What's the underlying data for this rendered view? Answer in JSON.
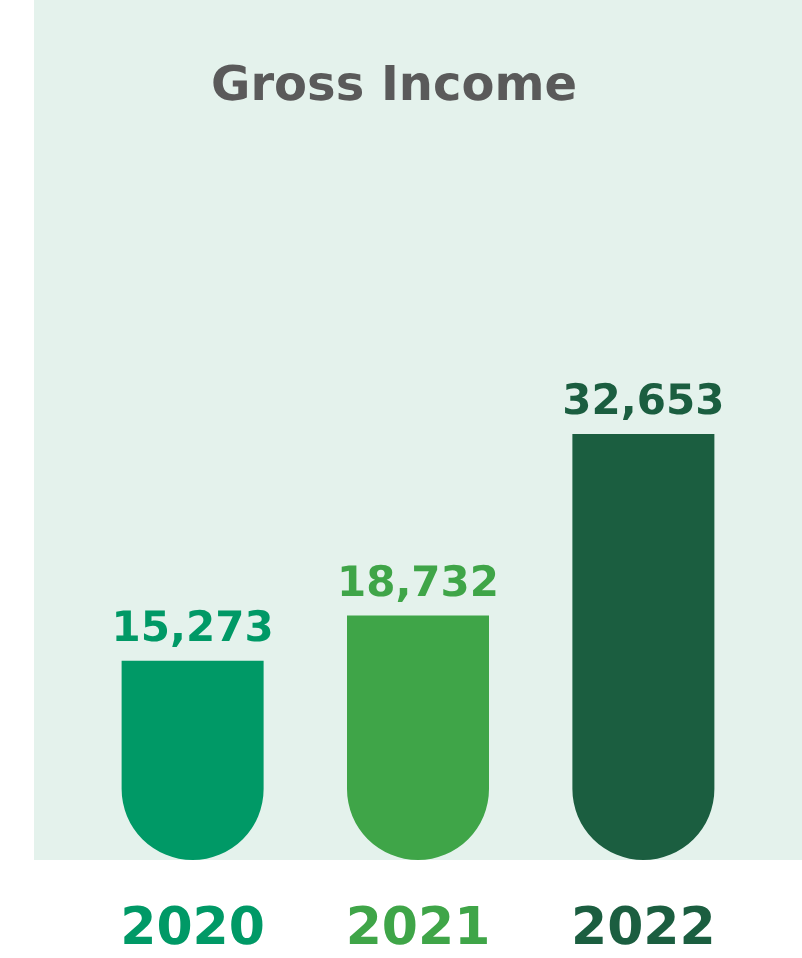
{
  "chart_data": {
    "type": "bar",
    "title": "Gross Income",
    "categories": [
      "2020",
      "2021",
      "2022"
    ],
    "values": [
      15273,
      18732,
      32653
    ],
    "colors": [
      "#009966",
      "#3fa548",
      "#1b5e40"
    ],
    "value_labels": [
      "15,273",
      "18,732",
      "32,653"
    ]
  }
}
